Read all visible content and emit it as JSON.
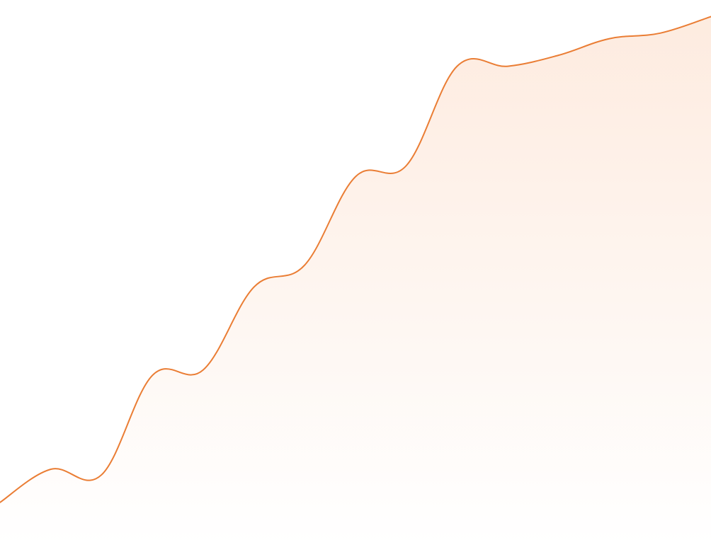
{
  "chart_data": {
    "type": "area",
    "title": "",
    "xlabel": "",
    "ylabel": "",
    "grid": false,
    "legend": "none",
    "ylim": [
      0,
      100
    ],
    "series": [
      {
        "x": [
          0,
          1,
          2,
          3,
          4,
          5,
          6,
          7,
          8,
          9,
          10,
          11,
          12,
          13,
          14
        ],
        "values": [
          9,
          15,
          14,
          32,
          33,
          48,
          52,
          68,
          70,
          88,
          88,
          90,
          93,
          94,
          97
        ],
        "color": "#ea7d34",
        "fill_color": "#fde9dc"
      }
    ]
  }
}
